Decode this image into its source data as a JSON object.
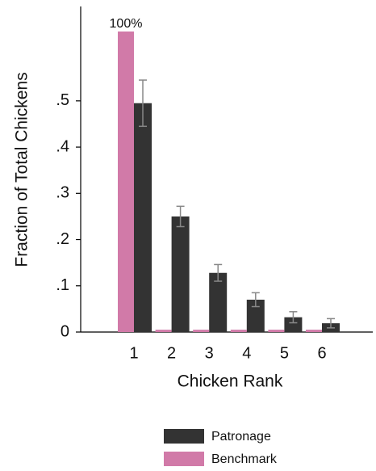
{
  "chart_data": {
    "type": "bar",
    "y_label": "Fraction of Total Chickens",
    "x_label": "Chicken Rank",
    "categories": [
      "1",
      "2",
      "3",
      "4",
      "5",
      "6"
    ],
    "series": [
      {
        "name": "Patronage",
        "color": "#333333",
        "values": [
          0.495,
          0.25,
          0.128,
          0.07,
          0.032,
          0.019
        ],
        "errors": [
          0.05,
          0.022,
          0.018,
          0.015,
          0.012,
          0.01
        ]
      },
      {
        "name": "Benchmark",
        "color": "#d17aa8",
        "values": [
          1,
          0.005,
          0.005,
          0.005,
          0.005,
          0.005
        ],
        "value_labels": [
          "100%",
          null,
          null,
          null,
          null,
          null
        ]
      }
    ],
    "ylim": [
      0,
      0.65
    ],
    "yticks": [
      0,
      {
        "value": 0.1,
        "label": ".1"
      },
      {
        "value": 0.2,
        "label": ".2"
      },
      {
        "value": 0.3,
        "label": ".3"
      },
      {
        "value": 0.4,
        "label": ".4"
      },
      {
        "value": 0.5,
        "label": ".5"
      }
    ],
    "error_color": "#888888"
  }
}
